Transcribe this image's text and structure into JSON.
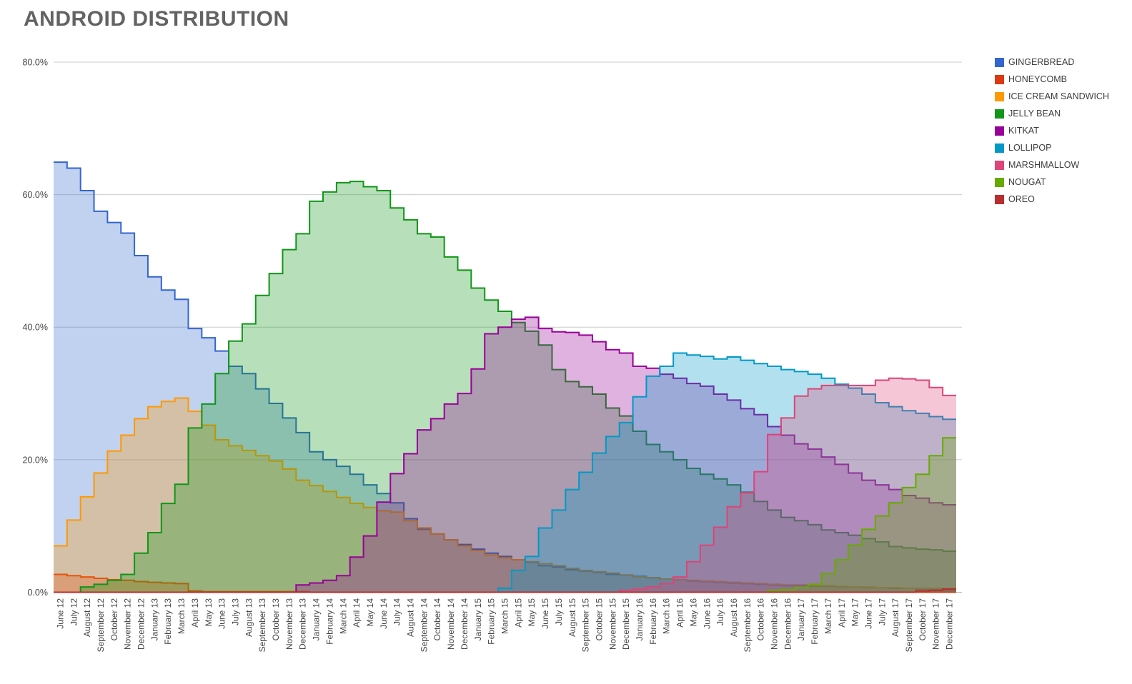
{
  "page": {
    "title": "ANDROID DISTRIBUTION"
  },
  "chart_data": {
    "type": "area",
    "variant": "stepped-area",
    "stacked": false,
    "title": "ANDROID DISTRIBUTION",
    "xlabel": "",
    "ylabel": "",
    "ylim": [
      0,
      80
    ],
    "y_ticks": [
      "0.0%",
      "20.0%",
      "40.0%",
      "60.0%",
      "80.0%"
    ],
    "y_tick_values": [
      0,
      20,
      40,
      60,
      80
    ],
    "grid": true,
    "legend_position": "right",
    "area_opacity": 0.3,
    "x_tick_rotation": -90,
    "title_color": "#636363",
    "axis_label_color": "#444444",
    "grid_color": "#cccccc",
    "categories": [
      "June 12",
      "July 12",
      "August 12",
      "September 12",
      "October 12",
      "November 12",
      "December 12",
      "January 13",
      "February 13",
      "March 13",
      "April 13",
      "May 13",
      "June 13",
      "July 13",
      "August 13",
      "September 13",
      "October 13",
      "November 13",
      "December 13",
      "January 14",
      "February 14",
      "March 14",
      "April 14",
      "May 14",
      "June 14",
      "July 14",
      "August 14",
      "September 14",
      "October 14",
      "November 14",
      "December 14",
      "January 15",
      "February 15",
      "March 15",
      "April 15",
      "May 15",
      "June 15",
      "July 15",
      "August 15",
      "September 15",
      "October 15",
      "November 15",
      "December 15",
      "January 16",
      "February 16",
      "March 16",
      "April 16",
      "May 16",
      "June 16",
      "July 16",
      "August 16",
      "September 16",
      "October 16",
      "November 16",
      "December 16",
      "January 17",
      "February 17",
      "March 17",
      "April 17",
      "May 17",
      "June 17",
      "July 17",
      "August 17",
      "September 17",
      "October 17",
      "November 17",
      "December 17"
    ],
    "series": [
      {
        "name": "GINGERBREAD",
        "color": "#3366CC",
        "values": [
          64.9,
          64.0,
          60.6,
          57.5,
          55.8,
          54.2,
          50.8,
          47.6,
          45.6,
          44.2,
          39.8,
          38.4,
          36.4,
          34.1,
          33.0,
          30.7,
          28.5,
          26.3,
          24.1,
          21.2,
          20.0,
          19.0,
          17.8,
          16.2,
          14.9,
          13.5,
          11.1,
          9.5,
          8.8,
          7.9,
          7.2,
          6.5,
          5.9,
          5.4,
          4.9,
          4.5,
          4.0,
          3.8,
          3.4,
          3.2,
          3.0,
          2.7,
          2.6,
          2.4,
          2.2,
          2.0,
          1.9,
          1.7,
          1.6,
          1.5,
          1.4,
          1.3,
          1.2,
          1.1,
          1.0,
          1.0,
          0.9,
          0.9,
          0.8,
          0.8,
          0.7,
          0.7,
          0.6,
          0.6,
          0.5,
          0.5,
          0.4
        ]
      },
      {
        "name": "HONEYCOMB",
        "color": "#DC3912",
        "values": [
          2.7,
          2.5,
          2.3,
          2.1,
          1.9,
          1.8,
          1.6,
          1.5,
          1.4,
          1.3,
          0.2,
          0.1,
          0.1,
          0.1,
          0.1,
          0.1,
          0.1,
          0.1,
          0.1,
          0,
          0,
          0,
          0,
          0,
          0,
          0,
          0,
          0,
          0,
          0,
          0,
          0,
          0,
          0,
          0,
          0,
          0,
          0,
          0,
          0,
          0,
          0,
          0,
          0,
          0,
          0,
          0,
          0,
          0,
          0,
          0,
          0,
          0,
          0,
          0,
          0,
          0,
          0,
          0,
          0,
          0,
          0,
          0,
          0,
          0,
          0,
          0
        ]
      },
      {
        "name": "ICE CREAM SANDWICH",
        "color": "#FF9900",
        "values": [
          7.0,
          10.9,
          14.4,
          18.0,
          21.3,
          23.7,
          26.2,
          28.0,
          28.8,
          29.3,
          27.3,
          25.2,
          23.0,
          22.1,
          21.4,
          20.6,
          19.8,
          18.6,
          16.9,
          16.1,
          15.2,
          14.3,
          13.4,
          12.8,
          12.3,
          12.1,
          10.8,
          9.7,
          8.8,
          7.9,
          7.0,
          6.3,
          5.6,
          5.2,
          4.9,
          4.6,
          4.3,
          4.0,
          3.6,
          3.3,
          3.1,
          2.9,
          2.6,
          2.3,
          2.2,
          2.0,
          1.9,
          1.8,
          1.7,
          1.6,
          1.5,
          1.4,
          1.3,
          1.2,
          1.1,
          1.1,
          1.0,
          1.0,
          0.9,
          0.8,
          0.8,
          0.7,
          0.7,
          0.6,
          0.6,
          0.6,
          0.5
        ]
      },
      {
        "name": "JELLY BEAN",
        "color": "#109618",
        "values": [
          0,
          0,
          0.8,
          1.2,
          1.8,
          2.7,
          5.9,
          9.0,
          13.4,
          16.3,
          24.8,
          28.4,
          33.0,
          37.9,
          40.5,
          44.8,
          48.1,
          51.7,
          54.1,
          59.0,
          60.4,
          61.8,
          62.0,
          61.2,
          60.6,
          58.0,
          56.2,
          54.1,
          53.6,
          50.6,
          48.6,
          45.9,
          44.1,
          42.4,
          40.7,
          39.4,
          37.3,
          33.6,
          31.8,
          31.0,
          29.9,
          27.8,
          26.6,
          24.3,
          22.3,
          21.2,
          20.0,
          18.7,
          17.8,
          17.1,
          16.2,
          15.1,
          13.7,
          12.4,
          11.3,
          10.8,
          10.2,
          9.4,
          9.0,
          8.6,
          8.1,
          7.6,
          6.9,
          6.7,
          6.5,
          6.4,
          6.2
        ]
      },
      {
        "name": "KITKAT",
        "color": "#990099",
        "values": [
          0,
          0,
          0,
          0,
          0,
          0,
          0,
          0,
          0,
          0,
          0,
          0,
          0,
          0,
          0,
          0,
          0,
          0,
          1.1,
          1.4,
          1.8,
          2.5,
          5.3,
          8.5,
          13.6,
          17.9,
          20.9,
          24.5,
          26.2,
          28.4,
          30.0,
          33.7,
          39.0,
          40.0,
          41.2,
          41.5,
          39.8,
          39.3,
          39.2,
          38.8,
          37.8,
          36.6,
          36.1,
          34.1,
          33.8,
          32.9,
          32.3,
          31.5,
          31.1,
          29.9,
          29.0,
          27.7,
          26.8,
          25.0,
          23.7,
          22.4,
          21.6,
          20.4,
          19.3,
          18.0,
          16.9,
          16.2,
          15.5,
          14.6,
          14.2,
          13.5,
          13.2
        ]
      },
      {
        "name": "LOLLIPOP",
        "color": "#0099C6",
        "values": [
          0,
          0,
          0,
          0,
          0,
          0,
          0,
          0,
          0,
          0,
          0,
          0,
          0,
          0,
          0,
          0,
          0,
          0,
          0,
          0,
          0,
          0,
          0,
          0,
          0,
          0,
          0,
          0,
          0,
          0,
          0,
          0,
          0,
          0.6,
          3.3,
          5.4,
          9.7,
          12.4,
          15.5,
          18.1,
          21.0,
          23.5,
          25.6,
          29.5,
          32.6,
          34.1,
          36.1,
          35.8,
          35.6,
          35.2,
          35.5,
          35.0,
          34.5,
          34.1,
          33.6,
          33.3,
          32.9,
          32.3,
          31.4,
          30.8,
          29.9,
          28.6,
          28.0,
          27.4,
          27.0,
          26.5,
          26.1
        ]
      },
      {
        "name": "MARSHMALLOW",
        "color": "#DD4477",
        "values": [
          0,
          0,
          0,
          0,
          0,
          0,
          0,
          0,
          0,
          0,
          0,
          0,
          0,
          0,
          0,
          0,
          0,
          0,
          0,
          0,
          0,
          0,
          0,
          0,
          0,
          0,
          0,
          0,
          0,
          0,
          0,
          0,
          0,
          0,
          0,
          0,
          0,
          0,
          0,
          0,
          0,
          0,
          0.3,
          0.5,
          0.8,
          1.3,
          2.3,
          4.6,
          7.1,
          9.8,
          12.9,
          15.0,
          18.2,
          23.8,
          26.3,
          29.6,
          30.7,
          31.2,
          31.2,
          31.2,
          31.2,
          32.0,
          32.3,
          32.2,
          32.0,
          30.9,
          29.7
        ]
      },
      {
        "name": "NOUGAT",
        "color": "#66AA00",
        "values": [
          0,
          0,
          0,
          0,
          0,
          0,
          0,
          0,
          0,
          0,
          0,
          0,
          0,
          0,
          0,
          0,
          0,
          0,
          0,
          0,
          0,
          0,
          0,
          0,
          0,
          0,
          0,
          0,
          0,
          0,
          0,
          0,
          0,
          0,
          0,
          0,
          0,
          0,
          0,
          0,
          0,
          0,
          0,
          0,
          0,
          0,
          0,
          0,
          0,
          0,
          0,
          0,
          0,
          0.3,
          0.4,
          0.7,
          1.2,
          2.8,
          4.9,
          7.1,
          9.5,
          11.5,
          13.5,
          15.8,
          17.8,
          20.6,
          23.3
        ]
      },
      {
        "name": "OREO",
        "color": "#B82E2E",
        "values": [
          0,
          0,
          0,
          0,
          0,
          0,
          0,
          0,
          0,
          0,
          0,
          0,
          0,
          0,
          0,
          0,
          0,
          0,
          0,
          0,
          0,
          0,
          0,
          0,
          0,
          0,
          0,
          0,
          0,
          0,
          0,
          0,
          0,
          0,
          0,
          0,
          0,
          0,
          0,
          0,
          0,
          0,
          0,
          0,
          0,
          0,
          0,
          0,
          0,
          0,
          0,
          0,
          0,
          0,
          0,
          0,
          0,
          0,
          0,
          0,
          0,
          0,
          0,
          0,
          0.2,
          0.3,
          0.5
        ]
      }
    ]
  }
}
